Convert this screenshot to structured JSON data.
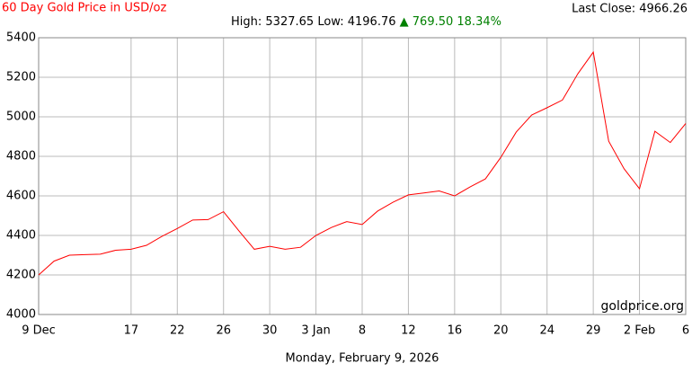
{
  "chart_data": {
    "type": "line",
    "title": "60 Day Gold Price in USD/oz",
    "stats": {
      "high_label": "High:",
      "high": "5327.65",
      "low_label": "Low:",
      "low": "4196.76",
      "change": "▲ 769.50 18.34%"
    },
    "last_close": "Last Close: 4966.26",
    "watermark": "goldprice.org",
    "date_caption": "Monday, February 9, 2026",
    "categories": [
      "9 Dec",
      null,
      null,
      null,
      null,
      null,
      "17",
      null,
      null,
      "22",
      null,
      null,
      "26",
      null,
      null,
      "30",
      null,
      null,
      "3 Jan",
      null,
      null,
      "8",
      null,
      null,
      "12",
      null,
      null,
      "16",
      null,
      null,
      "20",
      null,
      null,
      "24",
      null,
      null,
      "29",
      null,
      null,
      "2 Feb",
      null,
      null,
      "6"
    ],
    "series": [
      {
        "name": "Gold",
        "color": "#ff0000",
        "values": [
          4200,
          4270,
          4300,
          4303,
          4305,
          4325,
          4330,
          4350,
          4395,
          4435,
          4478,
          4480,
          4520,
          4423,
          4330,
          4345,
          4330,
          4340,
          4400,
          4440,
          4470,
          4455,
          4523,
          4568,
          4605,
          4615,
          4625,
          4600,
          4645,
          4686,
          4795,
          4923,
          5009,
          5046,
          5085,
          5218,
          5327,
          4877,
          4737,
          4636,
          4927,
          4870,
          4966
        ]
      }
    ],
    "ylim": [
      4000,
      5400
    ],
    "yticks": [
      4000,
      4200,
      4400,
      4600,
      4800,
      5000,
      5200,
      5400
    ],
    "grid": true
  }
}
